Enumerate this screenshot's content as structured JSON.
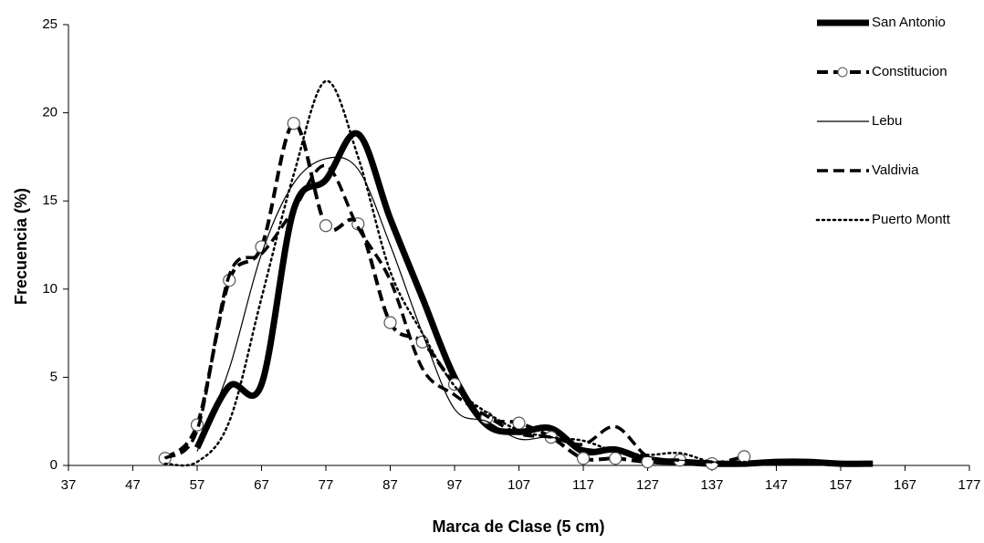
{
  "chart_data": {
    "type": "line",
    "x_label": "Marca de Clase (5 cm)",
    "y_label": "Frecuencia (%)",
    "x": [
      52,
      57,
      62,
      67,
      72,
      77,
      82,
      87,
      92,
      97,
      102,
      107,
      112,
      117,
      122,
      127,
      132,
      137,
      142,
      147,
      152,
      157,
      162
    ],
    "xlim": [
      37,
      177
    ],
    "xticks": [
      37,
      47,
      57,
      67,
      77,
      87,
      97,
      107,
      117,
      127,
      137,
      147,
      157,
      167,
      177
    ],
    "ylim": [
      0,
      25
    ],
    "yticks": [
      0,
      5,
      10,
      15,
      20,
      25
    ],
    "grid": false,
    "legend": "top-right",
    "smooth": true,
    "series": [
      {
        "name": "San Antonio",
        "color": "#000000",
        "line_style": "thick",
        "values": [
          null,
          1.0,
          4.5,
          4.6,
          14.5,
          16.2,
          18.8,
          14.0,
          9.5,
          5.0,
          2.3,
          1.9,
          2.1,
          0.8,
          0.9,
          0.3,
          0.2,
          0.1,
          0.1,
          0.2,
          0.2,
          0.1,
          0.1
        ]
      },
      {
        "name": "Constitucion",
        "color": "#000000",
        "line_style": "dashed-thick",
        "marker": "circle",
        "values": [
          0.4,
          2.3,
          10.5,
          12.4,
          19.4,
          13.6,
          13.7,
          8.1,
          7.0,
          4.6,
          2.7,
          2.4,
          1.6,
          0.4,
          0.4,
          0.2,
          0.3,
          0.1,
          0.5,
          null,
          null,
          null,
          null
        ]
      },
      {
        "name": "Lebu",
        "color": "#000000",
        "line_style": "thin",
        "values": [
          null,
          0.8,
          5.5,
          12.0,
          16.0,
          17.4,
          16.8,
          12.5,
          7.5,
          3.2,
          2.5,
          1.5,
          1.6,
          1.0,
          0.8,
          0.5,
          0.3,
          0.2,
          0.2,
          0.1,
          0.1,
          0.1,
          0.1
        ]
      },
      {
        "name": "Valdivia",
        "color": "#000000",
        "line_style": "dashed",
        "values": [
          0.4,
          2.0,
          10.8,
          12.0,
          14.5,
          17.0,
          13.5,
          10.5,
          5.5,
          4.0,
          2.8,
          1.8,
          1.6,
          1.2,
          2.2,
          0.5,
          0.3,
          0.2,
          0.1,
          0.1,
          0.1,
          null,
          null
        ]
      },
      {
        "name": "Puerto Montt",
        "color": "#000000",
        "line_style": "dotted",
        "values": [
          0.1,
          0.2,
          2.5,
          9.5,
          16.5,
          21.8,
          17.5,
          11.0,
          7.5,
          4.5,
          3.0,
          2.0,
          1.6,
          1.4,
          0.8,
          0.6,
          0.7,
          0.2,
          0.2,
          0.1,
          0.1,
          null,
          null
        ]
      }
    ]
  }
}
